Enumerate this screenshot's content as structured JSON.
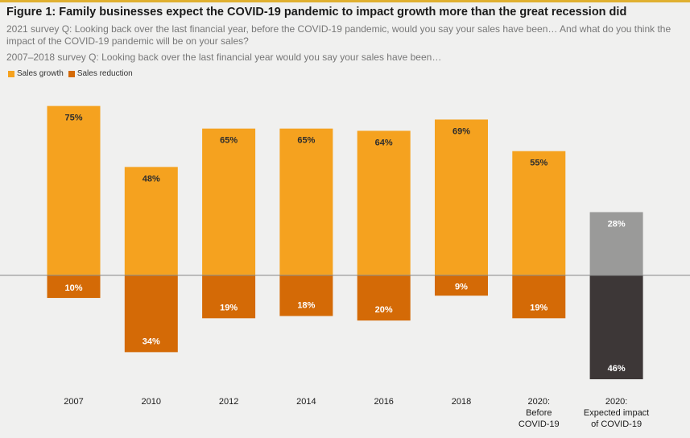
{
  "chart_data": {
    "type": "bar",
    "title": "Figure 1: Family businesses expect the COVID-19 pandemic to impact growth more than the great recession did",
    "subtitle_1": "2021 survey Q: Looking back over the last financial year, before the COVID-19 pandemic, would you say your sales have been… And what do you think the impact of the COVID-19 pandemic will be on your sales?",
    "subtitle_2": "2007–2018 survey Q: Looking back over the last financial year would you say your sales have been…",
    "categories": [
      [
        "2007"
      ],
      [
        "2010"
      ],
      [
        "2012"
      ],
      [
        "2014"
      ],
      [
        "2016"
      ],
      [
        "2018"
      ],
      [
        "2020:",
        "Before",
        "COVID-19"
      ],
      [
        "2020:",
        "Expected impact",
        "of COVID-19"
      ]
    ],
    "series": [
      {
        "name": "Sales growth",
        "values": [
          75,
          48,
          65,
          65,
          64,
          69,
          55,
          28
        ],
        "labels": [
          "75%",
          "48%",
          "65%",
          "65%",
          "64%",
          "69%",
          "55%",
          "28%"
        ]
      },
      {
        "name": "Sales reduction",
        "values": [
          10,
          34,
          19,
          18,
          20,
          9,
          19,
          46
        ],
        "labels": [
          "10%",
          "34%",
          "19%",
          "18%",
          "20%",
          "9%",
          "19%",
          "46%"
        ]
      }
    ],
    "colors": {
      "growth": "#f5a21f",
      "reduction": "#d46a06",
      "growth_highlight": "#9a9a99",
      "reduction_highlight": "#3d3737",
      "axis": "#888888"
    },
    "highlight_index": 7,
    "ylim": [
      -46,
      75
    ],
    "xlabel": "",
    "ylabel": ""
  }
}
